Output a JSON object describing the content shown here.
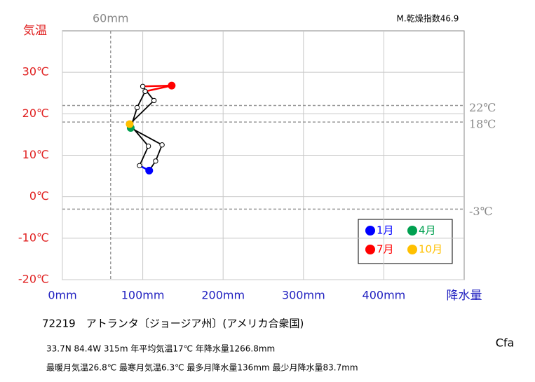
{
  "chart_data": {
    "type": "line",
    "index_text": "M.乾燥指数46.9",
    "y_label": "気温",
    "x_label": "降水量",
    "x": [
      108,
      116,
      124,
      85,
      93,
      103,
      136,
      100,
      114,
      83.7,
      107,
      96
    ],
    "values": [
      6.3,
      8.6,
      12.5,
      16.6,
      21.5,
      25.4,
      26.8,
      26.6,
      23.2,
      17.5,
      12.2,
      7.5
    ],
    "point_colors": [
      "#0000ff",
      null,
      null,
      "#00a050",
      null,
      null,
      "#ff0000",
      null,
      null,
      "#ffc000",
      null,
      null
    ],
    "segment_colors": [
      null,
      null,
      null,
      null,
      null,
      "#ff0000",
      "#ff0000",
      null,
      null,
      null,
      null,
      "#0000ff"
    ],
    "xlim": [
      0,
      500
    ],
    "ylim": [
      -20,
      40
    ],
    "xticks": [
      {
        "value": 0,
        "label": "0mm"
      },
      {
        "value": 100,
        "label": "100mm"
      },
      {
        "value": 200,
        "label": "200mm"
      },
      {
        "value": 300,
        "label": "300mm"
      },
      {
        "value": 400,
        "label": "400mm"
      }
    ],
    "yticks": [
      {
        "value": -20,
        "label": "-20℃"
      },
      {
        "value": -10,
        "label": "-10℃"
      },
      {
        "value": 0,
        "label": "0℃"
      },
      {
        "value": 10,
        "label": "10℃"
      },
      {
        "value": 20,
        "label": "20℃"
      },
      {
        "value": 30,
        "label": "30℃"
      }
    ],
    "x_refs": [
      {
        "value": 60,
        "label": "60mm"
      }
    ],
    "y_refs": [
      {
        "value": 22,
        "label": "22℃"
      },
      {
        "value": 18,
        "label": "18℃"
      },
      {
        "value": -3,
        "label": "-3℃"
      }
    ],
    "legend": [
      {
        "name": "1月",
        "color": "#0000ff"
      },
      {
        "name": "4月",
        "color": "#00a050"
      },
      {
        "name": "7月",
        "color": "#ff0000"
      },
      {
        "name": "10月",
        "color": "#ffc000"
      }
    ],
    "station": "72219　アトランタ〔ジョージア州〕(アメリカ合衆国)",
    "info1": "33.7N  84.4W 315m  年平均気温17℃ 年降水量1266.8mm",
    "info2": "最暖月気温26.8℃ 最寒月気温6.3℃ 最多月降水量136mm 最少月降水量83.7mm",
    "climate": "Cfa"
  }
}
